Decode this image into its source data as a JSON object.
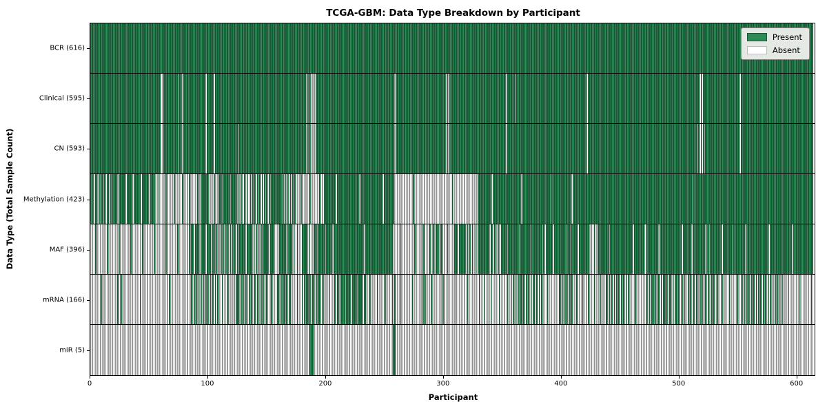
{
  "title": "TCGA-GBM: Data Type Breakdown by Participant",
  "xlabel": "Participant",
  "ylabel": "Data Type (Total Sample Count)",
  "legend": {
    "present_label": "Present",
    "absent_label": "Absent"
  },
  "colors": {
    "present": "#2E8B57",
    "present_edge": "#1c5636",
    "absent": "#ffffff",
    "absent_edge": "#9a9a9a",
    "legend_bg": "#e4e9e4",
    "axis": "#000000"
  },
  "chart_data": {
    "type": "heatmap",
    "title": "TCGA-GBM: Data Type Breakdown by Participant",
    "xlabel": "Participant",
    "ylabel": "Data Type (Total Sample Count)",
    "x_range": [
      0,
      616
    ],
    "x_ticks": [
      0,
      100,
      200,
      300,
      400,
      500,
      600
    ],
    "legend_entries": [
      "Present",
      "Absent"
    ],
    "legend_position": "upper right",
    "grid": false,
    "value_encoding": "segments are [start_participant, end_participant, fraction_present]; cells are binary Present/Absent per participant",
    "rows": [
      {
        "name": "BCR",
        "label": "BCR (616)",
        "present_count": 616,
        "segments": [
          [
            0,
            616,
            1
          ]
        ]
      },
      {
        "name": "Clinical",
        "label": "Clinical (595)",
        "present_count": 595,
        "segments": [
          [
            0,
            60,
            1
          ],
          [
            60,
            62,
            0
          ],
          [
            62,
            75,
            1
          ],
          [
            75,
            76,
            0
          ],
          [
            76,
            78,
            1
          ],
          [
            78,
            79,
            0
          ],
          [
            79,
            98,
            1
          ],
          [
            98,
            99,
            0
          ],
          [
            99,
            105,
            1
          ],
          [
            105,
            106,
            0
          ],
          [
            106,
            184,
            1
          ],
          [
            184,
            192,
            0.4
          ],
          [
            192,
            259,
            1
          ],
          [
            259,
            260,
            0
          ],
          [
            260,
            302,
            1
          ],
          [
            302,
            306,
            0.5
          ],
          [
            306,
            354,
            1
          ],
          [
            354,
            355,
            0
          ],
          [
            355,
            362,
            1
          ],
          [
            362,
            363,
            0
          ],
          [
            363,
            423,
            1
          ],
          [
            423,
            424,
            0
          ],
          [
            424,
            518,
            1
          ],
          [
            518,
            523,
            0.5
          ],
          [
            523,
            553,
            1
          ],
          [
            553,
            554,
            0
          ],
          [
            554,
            616,
            1
          ]
        ]
      },
      {
        "name": "CN",
        "label": "CN (593)",
        "present_count": 593,
        "segments": [
          [
            0,
            60,
            1
          ],
          [
            60,
            62,
            0
          ],
          [
            62,
            75,
            1
          ],
          [
            75,
            76,
            0
          ],
          [
            76,
            78,
            1
          ],
          [
            78,
            79,
            0
          ],
          [
            79,
            98,
            1
          ],
          [
            98,
            99,
            0
          ],
          [
            99,
            105,
            1
          ],
          [
            105,
            106,
            0
          ],
          [
            106,
            126,
            1
          ],
          [
            126,
            127,
            0
          ],
          [
            127,
            184,
            1
          ],
          [
            184,
            192,
            0.4
          ],
          [
            192,
            259,
            1
          ],
          [
            259,
            260,
            0
          ],
          [
            260,
            302,
            1
          ],
          [
            302,
            306,
            0.5
          ],
          [
            306,
            354,
            1
          ],
          [
            354,
            355,
            0
          ],
          [
            355,
            423,
            1
          ],
          [
            423,
            424,
            0
          ],
          [
            424,
            517,
            1
          ],
          [
            517,
            524,
            0.45
          ],
          [
            524,
            553,
            1
          ],
          [
            553,
            554,
            0
          ],
          [
            554,
            616,
            1
          ]
        ]
      },
      {
        "name": "Methylation",
        "label": "Methylation (423)",
        "present_count": 423,
        "segments": [
          [
            0,
            20,
            0.6
          ],
          [
            20,
            55,
            0.85
          ],
          [
            55,
            94,
            0.15
          ],
          [
            94,
            101,
            1
          ],
          [
            101,
            109,
            0.1
          ],
          [
            109,
            125,
            0.85
          ],
          [
            125,
            136,
            0.4
          ],
          [
            136,
            154,
            0.5
          ],
          [
            154,
            162,
            1
          ],
          [
            162,
            175,
            0.5
          ],
          [
            175,
            199,
            0.12
          ],
          [
            199,
            259,
            0.95
          ],
          [
            259,
            330,
            0.03
          ],
          [
            330,
            410,
            0.96
          ],
          [
            410,
            411,
            0
          ],
          [
            411,
            512,
            1
          ],
          [
            512,
            514,
            0.5
          ],
          [
            514,
            616,
            1
          ]
        ]
      },
      {
        "name": "MAF",
        "label": "MAF (396)",
        "present_count": 396,
        "segments": [
          [
            0,
            86,
            0.1
          ],
          [
            86,
            105,
            0.8
          ],
          [
            105,
            127,
            0.5
          ],
          [
            127,
            137,
            0.9
          ],
          [
            137,
            147,
            0.5
          ],
          [
            147,
            157,
            0.9
          ],
          [
            157,
            162,
            0.1
          ],
          [
            162,
            172,
            0.9
          ],
          [
            172,
            180,
            0.3
          ],
          [
            180,
            187,
            0.9
          ],
          [
            187,
            190,
            0.1
          ],
          [
            190,
            208,
            0.85
          ],
          [
            208,
            258,
            0.98
          ],
          [
            258,
            283,
            0.08
          ],
          [
            283,
            285,
            0.9
          ],
          [
            285,
            292,
            0.1
          ],
          [
            292,
            300,
            0.7
          ],
          [
            300,
            310,
            0.1
          ],
          [
            310,
            322,
            0.85
          ],
          [
            322,
            330,
            0.4
          ],
          [
            330,
            343,
            0.95
          ],
          [
            343,
            350,
            0.3
          ],
          [
            350,
            387,
            0.9
          ],
          [
            387,
            388,
            0
          ],
          [
            388,
            394,
            1
          ],
          [
            394,
            395,
            0
          ],
          [
            395,
            409,
            0.95
          ],
          [
            409,
            410,
            0
          ],
          [
            410,
            425,
            0.9
          ],
          [
            425,
            432,
            0.3
          ],
          [
            432,
            472,
            0.95
          ],
          [
            472,
            474,
            0.2
          ],
          [
            474,
            512,
            0.95
          ],
          [
            512,
            514,
            0.3
          ],
          [
            514,
            527,
            0.95
          ],
          [
            527,
            528,
            0
          ],
          [
            528,
            538,
            0.95
          ],
          [
            538,
            539,
            0
          ],
          [
            539,
            547,
            0.95
          ],
          [
            547,
            548,
            0
          ],
          [
            548,
            616,
            0.95
          ]
        ]
      },
      {
        "name": "mRNA",
        "label": "mRNA (166)",
        "present_count": 166,
        "segments": [
          [
            0,
            22,
            0.05
          ],
          [
            22,
            30,
            0.3
          ],
          [
            30,
            86,
            0.04
          ],
          [
            86,
            110,
            0.5
          ],
          [
            110,
            122,
            0.2
          ],
          [
            122,
            129,
            0.7
          ],
          [
            129,
            152,
            0.4
          ],
          [
            152,
            160,
            0.2
          ],
          [
            160,
            172,
            0.6
          ],
          [
            172,
            180,
            0.1
          ],
          [
            180,
            196,
            0.6
          ],
          [
            196,
            210,
            0.2
          ],
          [
            210,
            235,
            0.8
          ],
          [
            235,
            257,
            0.15
          ],
          [
            257,
            260,
            0.6
          ],
          [
            260,
            283,
            0.1
          ],
          [
            283,
            286,
            0.6
          ],
          [
            286,
            307,
            0.1
          ],
          [
            307,
            332,
            0.1
          ],
          [
            332,
            358,
            0.15
          ],
          [
            358,
            385,
            0.55
          ],
          [
            385,
            400,
            0.1
          ],
          [
            400,
            412,
            0.5
          ],
          [
            412,
            440,
            0.2
          ],
          [
            440,
            460,
            0.5
          ],
          [
            460,
            474,
            0.1
          ],
          [
            474,
            503,
            0.6
          ],
          [
            503,
            535,
            0.4
          ],
          [
            535,
            555,
            0.15
          ],
          [
            555,
            559,
            0.5
          ],
          [
            559,
            590,
            0.5
          ],
          [
            590,
            616,
            0.1
          ]
        ]
      },
      {
        "name": "miR",
        "label": "miR (5)",
        "present_count": 5,
        "segments": [
          [
            0,
            187,
            0
          ],
          [
            187,
            190,
            1
          ],
          [
            190,
            258,
            0
          ],
          [
            258,
            260,
            1
          ],
          [
            260,
            616,
            0
          ]
        ]
      }
    ]
  }
}
